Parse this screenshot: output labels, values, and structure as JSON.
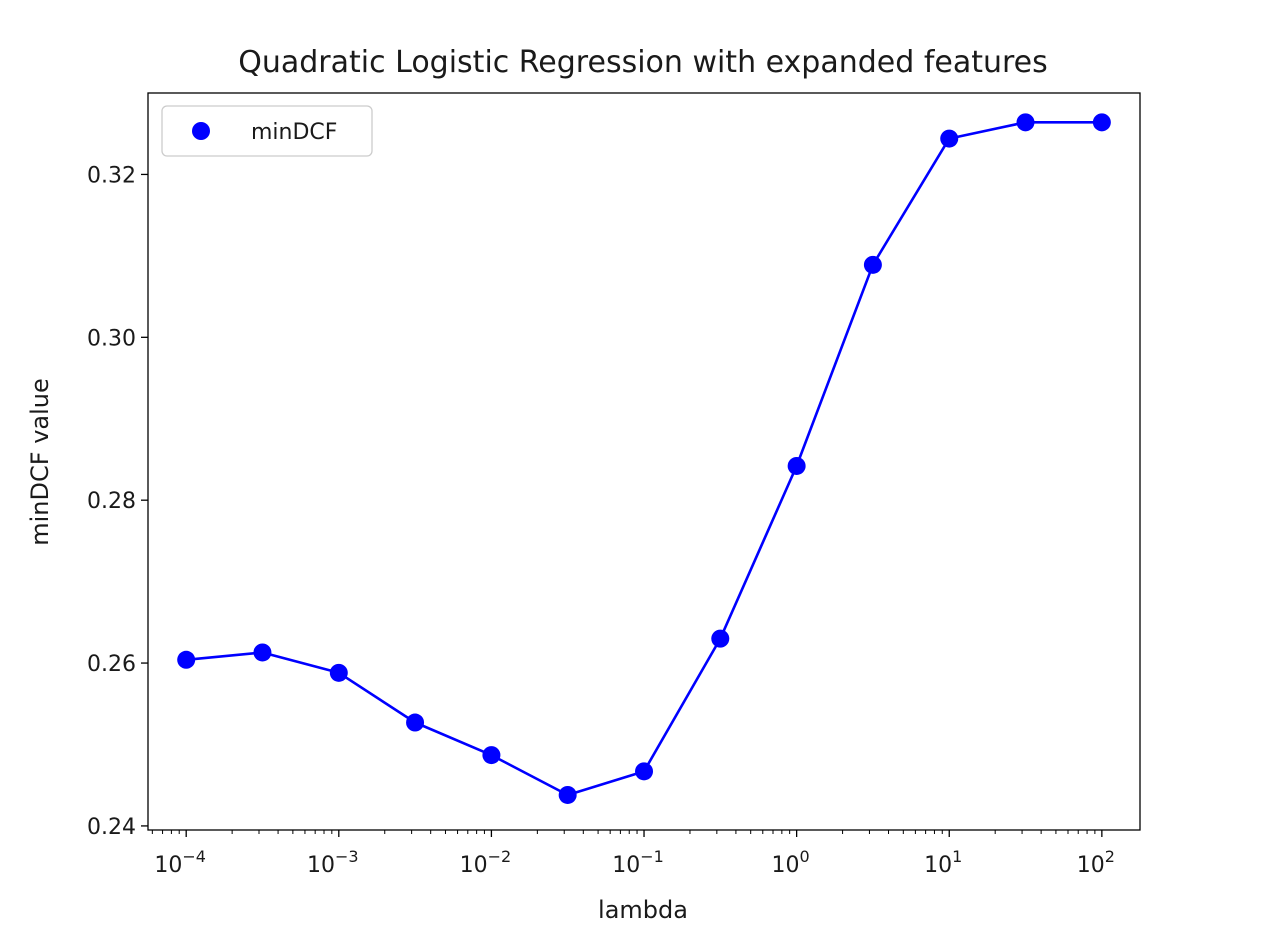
{
  "chart_data": {
    "type": "line",
    "title": "Quadratic Logistic Regression with expanded features",
    "xlabel": "lambda",
    "ylabel": "minDCF value",
    "x_scale": "log",
    "xlim": [
      5.62e-05,
      177.8
    ],
    "ylim": [
      0.2395,
      0.33
    ],
    "x_ticks": [
      {
        "value": 0.0001,
        "base": "10",
        "exp": "−4"
      },
      {
        "value": 0.001,
        "base": "10",
        "exp": "−3"
      },
      {
        "value": 0.01,
        "base": "10",
        "exp": "−2"
      },
      {
        "value": 0.1,
        "base": "10",
        "exp": "−1"
      },
      {
        "value": 1,
        "base": "10",
        "exp": "0"
      },
      {
        "value": 10,
        "base": "10",
        "exp": "1"
      },
      {
        "value": 100,
        "base": "10",
        "exp": "2"
      }
    ],
    "y_ticks": [
      {
        "value": 0.24,
        "label": "0.24"
      },
      {
        "value": 0.26,
        "label": "0.26"
      },
      {
        "value": 0.28,
        "label": "0.28"
      },
      {
        "value": 0.3,
        "label": "0.30"
      },
      {
        "value": 0.32,
        "label": "0.32"
      }
    ],
    "grid": false,
    "legend": {
      "position": "top-left",
      "entries": [
        "minDCF"
      ]
    },
    "series": [
      {
        "name": "minDCF",
        "color": "#0000ff",
        "x": [
          0.0001,
          0.000316,
          0.001,
          0.00316,
          0.01,
          0.0316,
          0.1,
          0.316,
          1,
          3.16,
          10,
          31.6,
          100
        ],
        "y": [
          0.2604,
          0.2613,
          0.2588,
          0.2527,
          0.2487,
          0.2438,
          0.2467,
          0.263,
          0.2842,
          0.3089,
          0.3244,
          0.3264,
          0.3264
        ]
      }
    ]
  }
}
